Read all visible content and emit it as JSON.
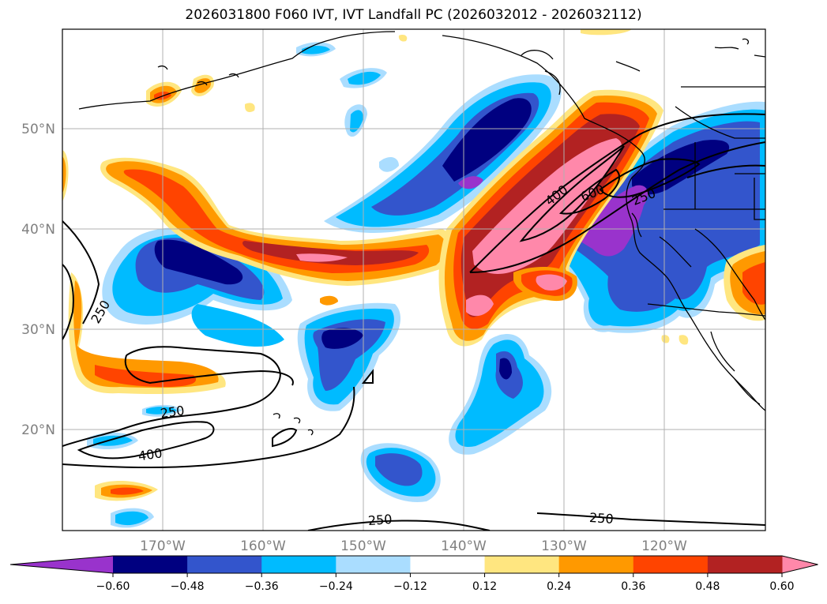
{
  "title": "2026031800 F060 IVT, IVT Landfall PC (2026032012 - 2026032112)",
  "chart_data": {
    "type": "heatmap",
    "title": "2026031800 F060 IVT, IVT Landfall PC (2026032012 - 2026032112)",
    "map_extent": {
      "lon": [
        -180,
        -110
      ],
      "lat": [
        10,
        60
      ]
    },
    "grid": true,
    "x_ticks": [
      "170°W",
      "160°W",
      "150°W",
      "140°W",
      "130°W",
      "120°W"
    ],
    "y_ticks": [
      "50°N",
      "40°N",
      "30°N",
      "20°N"
    ],
    "colorbar": {
      "orientation": "horizontal",
      "extend": "both",
      "levels": [
        -0.6,
        -0.48,
        -0.36,
        -0.24,
        -0.12,
        0.12,
        0.24,
        0.36,
        0.48,
        0.6
      ],
      "tick_labels": [
        "−0.60",
        "−0.48",
        "−0.36",
        "−0.24",
        "−0.12",
        "0.12",
        "0.24",
        "0.36",
        "0.48",
        "0.60"
      ],
      "colors": [
        "#9933cc",
        "#000080",
        "#3355cc",
        "#00bbff",
        "#aaddff",
        "#ffffff",
        "#ffe680",
        "#ff9900",
        "#ff4400",
        "#b22222",
        "#ff88aa"
      ]
    },
    "contour_labels": [
      "250",
      "400",
      "600",
      "250",
      "250",
      "400",
      "250",
      "250"
    ]
  }
}
